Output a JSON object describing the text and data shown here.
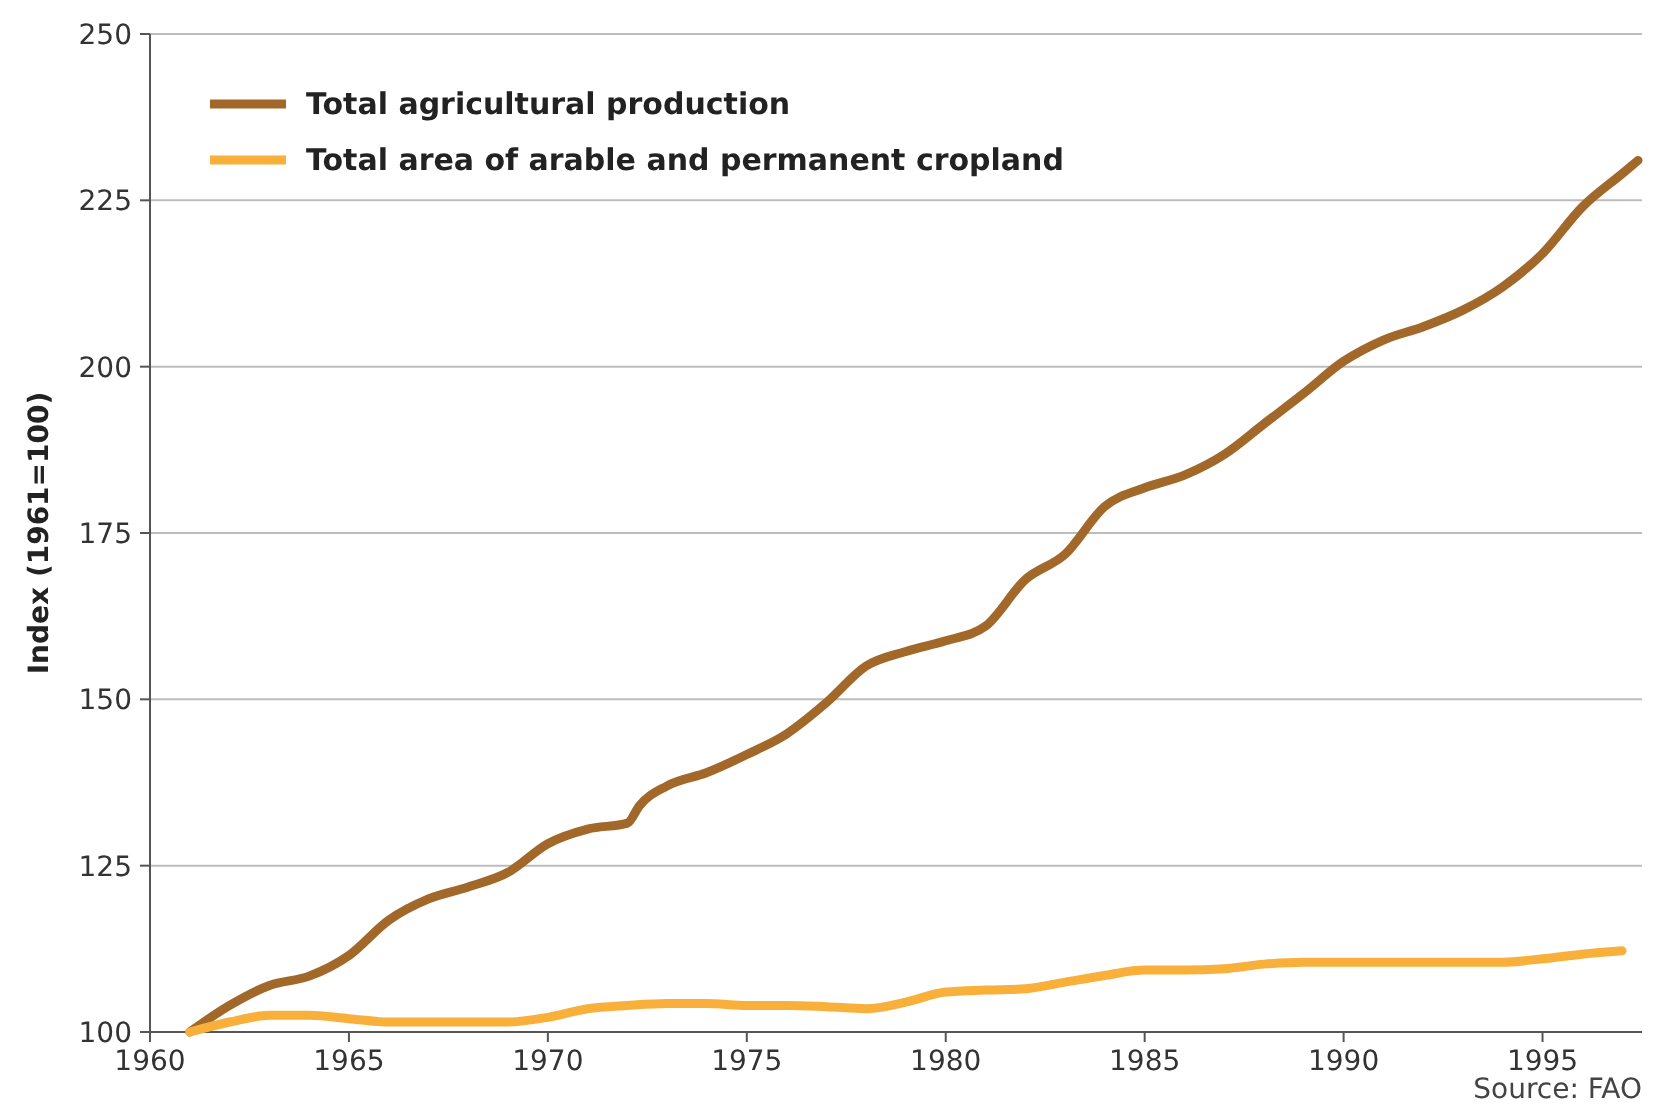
{
  "chart_data": {
    "type": "line",
    "ylabel": "Index (1961=100)",
    "xlim": [
      1960,
      1997.5
    ],
    "xticks": [
      1960,
      1965,
      1970,
      1975,
      1980,
      1985,
      1990,
      1995
    ],
    "ylim": [
      100,
      250
    ],
    "yticks": [
      100,
      125,
      150,
      175,
      200,
      225,
      250
    ],
    "grid": "y",
    "legend": "top left",
    "line_style": "solid",
    "marker": "none",
    "annotations": [
      "Source: FAO"
    ],
    "series": [
      {
        "name": "Total agricultural production",
        "color": "#a2682a",
        "x": [
          1961,
          1962,
          1963,
          1964,
          1965,
          1966,
          1967,
          1968,
          1969,
          1970,
          1971,
          1972,
          1972.3,
          1973,
          1974,
          1975,
          1976,
          1977,
          1978,
          1979,
          1980,
          1981,
          1982,
          1983,
          1984,
          1985,
          1986,
          1987,
          1988,
          1989,
          1990,
          1991,
          1992,
          1993,
          1994,
          1995,
          1996,
          1997,
          1997.4
        ],
        "values": [
          100,
          104,
          107,
          108.4,
          111.5,
          116.8,
          120,
          121.8,
          124,
          128.3,
          130.5,
          131.4,
          134,
          137,
          139,
          141.7,
          144.8,
          149.5,
          155,
          157.2,
          158.8,
          161,
          168,
          171.8,
          179,
          181.8,
          183.7,
          186.8,
          191.4,
          196,
          200.8,
          204,
          206,
          208.5,
          212,
          217,
          224,
          229,
          231
        ]
      },
      {
        "name": "Total area of arable and permanent cropland",
        "color": "#f9b03a",
        "x": [
          1961,
          1962,
          1963,
          1964,
          1965,
          1966,
          1967,
          1968,
          1969,
          1970,
          1971,
          1972,
          1973,
          1974,
          1975,
          1976,
          1977,
          1978,
          1979,
          1980,
          1981,
          1982,
          1983,
          1984,
          1985,
          1986,
          1987,
          1988,
          1989,
          1990,
          1991,
          1992,
          1993,
          1994,
          1995,
          1996,
          1997
        ],
        "values": [
          100,
          101.5,
          102.5,
          102.5,
          102,
          101.5,
          101.5,
          101.5,
          101.5,
          102.2,
          103.5,
          104,
          104.3,
          104.3,
          104,
          104,
          103.8,
          103.5,
          104.5,
          106,
          106.3,
          106.5,
          107.5,
          108.5,
          109.3,
          109.3,
          109.5,
          110.2,
          110.5,
          110.5,
          110.5,
          110.5,
          110.5,
          110.5,
          111,
          111.7,
          112.2
        ]
      }
    ]
  }
}
